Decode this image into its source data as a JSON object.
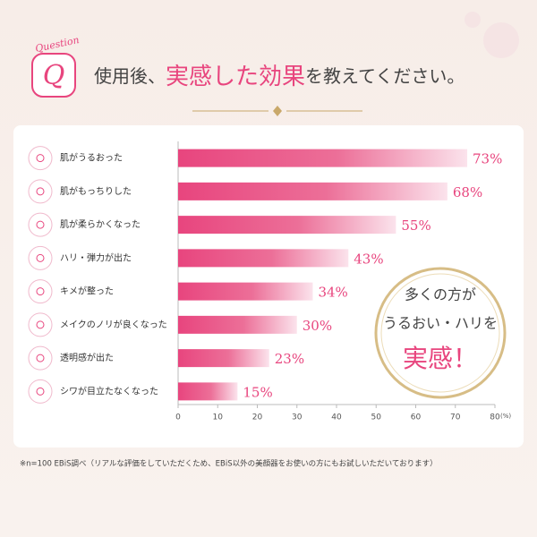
{
  "chart_data": {
    "type": "bar",
    "orientation": "horizontal",
    "badge": {
      "word": "Question",
      "letter": "Q"
    },
    "title": [
      "使用後、",
      "実感した効果",
      "を教えてください。"
    ],
    "categories": [
      "肌がうるおった",
      "肌がもっちりした",
      "肌が柔らかくなった",
      "ハリ・弾力が出た",
      "キメが整った",
      "メイクのノリが良くなった",
      "透明感が出た",
      "シワが目立たなくなった"
    ],
    "values": [
      73,
      68,
      55,
      43,
      34,
      30,
      23,
      15
    ],
    "value_labels": [
      "73%",
      "68%",
      "55%",
      "43%",
      "34%",
      "30%",
      "23%",
      "15%"
    ],
    "color": "#e8457e",
    "xlim": [
      0,
      80
    ],
    "xticks": [
      0,
      10,
      20,
      30,
      40,
      50,
      60,
      70,
      80
    ],
    "x_label": "(%)",
    "callout": [
      "多くの方が",
      "うるおい・ハリを",
      "実感！"
    ],
    "footnote": "※n=100 EBiS調べ（リアルな評価をしていただくため、EBiS以外の美顔器をお使いの方にもお試しいただいております）"
  }
}
